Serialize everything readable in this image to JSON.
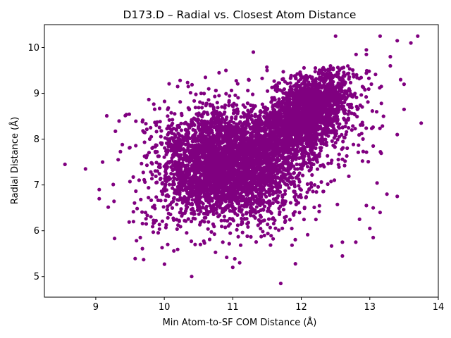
{
  "chart_data": {
    "type": "scatter",
    "title": "D173.D – Radial vs. Closest Atom Distance",
    "xlabel": "Min Atom-to-SF COM Distance (Å)",
    "ylabel": "Radial Distance (Å)",
    "xlim": [
      8.25,
      14.0
    ],
    "ylim": [
      4.55,
      10.5
    ],
    "xticks": [
      9,
      10,
      11,
      12,
      13,
      14
    ],
    "yticks": [
      5,
      6,
      7,
      8,
      9,
      10
    ],
    "grid": false,
    "legend": "none",
    "series": [
      {
        "color": "#800080",
        "approx_point_count": 6000,
        "main_cloud": {
          "x_range": [
            9.1,
            13.2
          ],
          "y_range": [
            5.2,
            9.6
          ],
          "dense_cluster_1_center": [
            10.9,
            7.5
          ],
          "dense_cluster_2_center": [
            12.1,
            8.6
          ]
        },
        "points": [
          [
            8.55,
            7.45
          ],
          [
            8.85,
            7.35
          ],
          [
            9.05,
            6.7
          ],
          [
            9.05,
            6.9
          ],
          [
            9.1,
            7.5
          ],
          [
            10.4,
            5.0
          ],
          [
            11.7,
            4.85
          ],
          [
            11.0,
            5.2
          ],
          [
            11.1,
            5.3
          ],
          [
            11.3,
            9.9
          ],
          [
            11.5,
            9.5
          ],
          [
            12.5,
            10.25
          ],
          [
            13.15,
            10.25
          ],
          [
            13.4,
            10.15
          ],
          [
            13.7,
            10.25
          ],
          [
            13.6,
            10.1
          ],
          [
            13.3,
            9.8
          ],
          [
            13.3,
            9.6
          ],
          [
            13.45,
            9.3
          ],
          [
            13.5,
            9.2
          ],
          [
            13.75,
            8.35
          ],
          [
            13.5,
            8.65
          ],
          [
            13.4,
            8.1
          ],
          [
            13.2,
            8.5
          ],
          [
            13.05,
            7.85
          ],
          [
            13.05,
            6.5
          ],
          [
            13.0,
            6.05
          ],
          [
            13.05,
            5.85
          ],
          [
            13.15,
            6.4
          ],
          [
            13.25,
            6.8
          ],
          [
            13.4,
            6.75
          ],
          [
            12.95,
            6.55
          ],
          [
            12.85,
            6.25
          ],
          [
            12.6,
            5.45
          ],
          [
            12.6,
            5.75
          ],
          [
            12.95,
            9.95
          ],
          [
            12.95,
            9.85
          ],
          [
            12.8,
            9.85
          ],
          [
            10.05,
            8.65
          ],
          [
            9.8,
            8.25
          ],
          [
            10.35,
            9.15
          ],
          [
            10.6,
            9.35
          ],
          [
            10.8,
            9.45
          ],
          [
            10.9,
            9.5
          ],
          [
            10.45,
            5.7
          ],
          [
            10.05,
            5.7
          ],
          [
            9.65,
            5.85
          ],
          [
            9.55,
            6.2
          ]
        ]
      }
    ]
  }
}
